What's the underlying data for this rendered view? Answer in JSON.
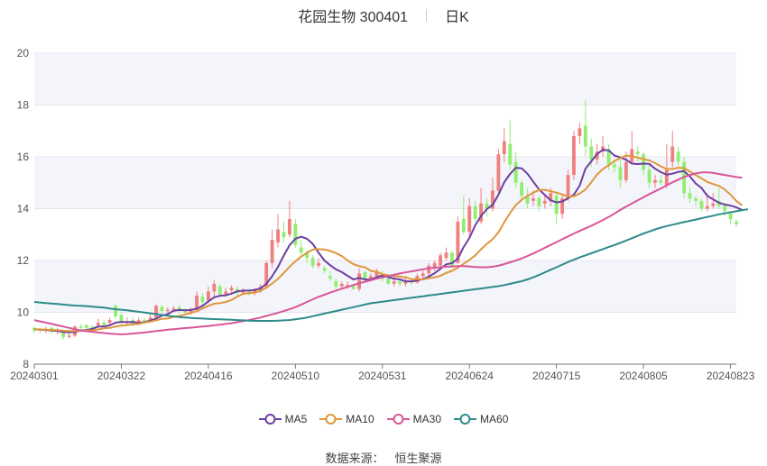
{
  "header": {
    "stock": "花园生物 300401",
    "period": "日K"
  },
  "source": {
    "label": "数据来源：",
    "value": "恒生聚源"
  },
  "colors": {
    "up": "#f08080",
    "down": "#90ee70",
    "MA5": "#6b3fa0",
    "MA10": "#e0963c",
    "MA30": "#d9559a",
    "MA60": "#2e8b8b",
    "band": "#f4f5fa",
    "grid": "#e4e6ee"
  },
  "chart_data": {
    "type": "candlestick",
    "ylim": [
      8,
      20
    ],
    "yticks": [
      "8",
      "10",
      "12",
      "14",
      "16",
      "18",
      "20"
    ],
    "x_ticks": [
      "20240301",
      "20240322",
      "20240416",
      "20240510",
      "20240531",
      "20240624",
      "20240715",
      "20240805",
      "20240823"
    ],
    "x_tick_index": [
      0,
      15,
      30,
      45,
      60,
      75,
      90,
      105,
      120
    ],
    "legend": [
      "MA5",
      "MA10",
      "MA30",
      "MA60"
    ],
    "candles": [
      [
        9.4,
        9.3,
        9.45,
        9.2
      ],
      [
        9.35,
        9.3,
        9.4,
        9.2
      ],
      [
        9.3,
        9.35,
        9.45,
        9.2
      ],
      [
        9.4,
        9.25,
        9.45,
        9.2
      ],
      [
        9.25,
        9.3,
        9.4,
        9.15
      ],
      [
        9.2,
        9.05,
        9.3,
        8.95
      ],
      [
        9.05,
        9.1,
        9.2,
        9.0
      ],
      [
        9.1,
        9.45,
        9.5,
        9.05
      ],
      [
        9.45,
        9.4,
        9.55,
        9.3
      ],
      [
        9.5,
        9.4,
        9.55,
        9.3
      ],
      [
        9.45,
        9.4,
        9.5,
        9.3
      ],
      [
        9.5,
        9.6,
        9.75,
        9.4
      ],
      [
        9.6,
        9.5,
        9.7,
        9.45
      ],
      [
        9.6,
        9.7,
        9.8,
        9.5
      ],
      [
        10.25,
        9.85,
        10.3,
        9.75
      ],
      [
        9.9,
        9.6,
        10.0,
        9.5
      ],
      [
        9.6,
        9.65,
        9.8,
        9.5
      ],
      [
        9.7,
        9.55,
        9.8,
        9.45
      ],
      [
        9.55,
        9.7,
        9.8,
        9.5
      ],
      [
        9.7,
        9.65,
        9.8,
        9.55
      ],
      [
        9.7,
        9.8,
        10.0,
        9.6
      ],
      [
        9.8,
        10.25,
        10.3,
        9.7
      ],
      [
        10.2,
        10.05,
        10.3,
        9.95
      ],
      [
        10.05,
        10.1,
        10.2,
        9.95
      ],
      [
        10.1,
        10.15,
        10.25,
        10.0
      ],
      [
        10.2,
        10.05,
        10.3,
        9.95
      ],
      [
        10.05,
        10.0,
        10.15,
        9.9
      ],
      [
        10.0,
        10.1,
        10.2,
        9.9
      ],
      [
        10.1,
        10.65,
        10.8,
        10.0
      ],
      [
        10.6,
        10.4,
        10.75,
        10.3
      ],
      [
        10.45,
        10.8,
        11.0,
        10.35
      ],
      [
        10.8,
        11.1,
        11.25,
        10.6
      ],
      [
        11.0,
        10.7,
        11.1,
        10.6
      ],
      [
        10.7,
        10.8,
        10.95,
        10.6
      ],
      [
        10.85,
        10.95,
        11.05,
        10.7
      ],
      [
        10.9,
        10.75,
        11.0,
        10.65
      ],
      [
        10.75,
        10.85,
        10.95,
        10.7
      ],
      [
        10.8,
        10.75,
        10.9,
        10.65
      ],
      [
        10.75,
        10.85,
        10.95,
        10.65
      ],
      [
        10.85,
        11.0,
        11.1,
        10.75
      ],
      [
        11.0,
        11.9,
        12.0,
        10.9
      ],
      [
        11.9,
        12.8,
        13.2,
        11.7
      ],
      [
        12.7,
        13.2,
        13.8,
        12.5
      ],
      [
        13.1,
        12.9,
        13.5,
        12.7
      ],
      [
        13.0,
        13.6,
        14.3,
        12.9
      ],
      [
        13.4,
        12.6,
        13.6,
        12.5
      ],
      [
        12.5,
        12.3,
        12.8,
        12.2
      ],
      [
        12.3,
        12.1,
        12.4,
        11.9
      ],
      [
        12.1,
        11.8,
        12.2,
        11.7
      ],
      [
        11.8,
        11.9,
        12.1,
        11.7
      ],
      [
        11.7,
        11.6,
        11.8,
        11.5
      ],
      [
        11.4,
        11.3,
        11.6,
        11.2
      ],
      [
        11.2,
        11.0,
        11.3,
        10.9
      ],
      [
        11.0,
        11.1,
        11.2,
        10.9
      ],
      [
        11.0,
        11.05,
        11.2,
        10.9
      ],
      [
        11.0,
        10.9,
        11.1,
        10.85
      ],
      [
        10.9,
        11.5,
        11.7,
        10.8
      ],
      [
        11.55,
        11.3,
        11.6,
        11.2
      ],
      [
        11.3,
        11.4,
        11.5,
        11.2
      ],
      [
        11.4,
        11.6,
        11.7,
        11.3
      ],
      [
        11.5,
        11.3,
        11.6,
        11.2
      ],
      [
        11.3,
        11.1,
        11.4,
        11.05
      ],
      [
        11.1,
        11.2,
        11.4,
        11.0
      ],
      [
        11.2,
        11.1,
        11.3,
        11.0
      ],
      [
        11.1,
        11.2,
        11.4,
        11.0
      ],
      [
        11.2,
        11.15,
        11.3,
        11.05
      ],
      [
        11.15,
        11.4,
        11.5,
        11.1
      ],
      [
        11.4,
        11.5,
        11.6,
        11.3
      ],
      [
        11.5,
        11.8,
        11.9,
        11.4
      ],
      [
        11.7,
        11.9,
        12.0,
        11.6
      ],
      [
        11.8,
        12.2,
        12.3,
        11.7
      ],
      [
        12.1,
        12.3,
        12.5,
        12.0
      ],
      [
        12.3,
        11.8,
        12.4,
        11.7
      ],
      [
        11.9,
        13.5,
        13.7,
        11.9
      ],
      [
        13.6,
        13.1,
        14.5,
        13.0
      ],
      [
        13.1,
        14.1,
        14.4,
        12.9
      ],
      [
        14.1,
        13.6,
        14.3,
        13.5
      ],
      [
        13.5,
        14.2,
        14.8,
        13.4
      ],
      [
        14.2,
        14.0,
        14.4,
        13.7
      ],
      [
        14.0,
        14.7,
        15.2,
        13.9
      ],
      [
        14.7,
        16.1,
        16.3,
        14.6
      ],
      [
        16.1,
        16.6,
        17.1,
        15.8
      ],
      [
        16.5,
        15.7,
        17.4,
        15.5
      ],
      [
        15.8,
        15.0,
        16.2,
        14.8
      ],
      [
        15.0,
        14.5,
        15.1,
        14.3
      ],
      [
        14.5,
        14.2,
        14.8,
        14.0
      ],
      [
        14.3,
        14.4,
        14.7,
        14.1
      ],
      [
        14.4,
        14.1,
        14.5,
        13.9
      ],
      [
        14.2,
        14.3,
        14.5,
        14.0
      ],
      [
        14.3,
        14.6,
        14.8,
        14.1
      ],
      [
        14.5,
        13.8,
        14.6,
        13.4
      ],
      [
        13.8,
        14.4,
        14.5,
        13.6
      ],
      [
        14.4,
        15.3,
        15.5,
        14.3
      ],
      [
        15.3,
        16.8,
        17.0,
        15.1
      ],
      [
        16.8,
        17.1,
        17.3,
        16.5
      ],
      [
        17.2,
        16.4,
        18.2,
        16.0
      ],
      [
        16.4,
        15.9,
        16.7,
        15.6
      ],
      [
        15.9,
        16.2,
        16.5,
        15.7
      ],
      [
        16.2,
        16.4,
        16.8,
        16.0
      ],
      [
        16.3,
        15.7,
        16.5,
        15.5
      ],
      [
        15.7,
        15.6,
        15.9,
        15.4
      ],
      [
        15.6,
        15.1,
        16.0,
        14.8
      ],
      [
        15.1,
        15.8,
        16.2,
        15.0
      ],
      [
        15.8,
        16.3,
        17.0,
        15.7
      ],
      [
        16.2,
        16.1,
        16.4,
        15.8
      ],
      [
        16.1,
        15.5,
        16.2,
        15.3
      ],
      [
        15.5,
        15.0,
        15.7,
        14.8
      ],
      [
        15.0,
        15.1,
        15.3,
        14.8
      ],
      [
        15.1,
        15.0,
        15.3,
        14.9
      ],
      [
        14.9,
        15.5,
        16.5,
        14.8
      ],
      [
        15.8,
        16.4,
        17.0,
        15.6
      ],
      [
        16.2,
        15.8,
        16.4,
        15.6
      ],
      [
        15.8,
        14.6,
        16.0,
        14.4
      ],
      [
        14.6,
        14.4,
        14.8,
        14.2
      ],
      [
        14.4,
        14.3,
        14.5,
        14.1
      ],
      [
        14.3,
        14.0,
        14.4,
        13.9
      ],
      [
        14.0,
        14.1,
        14.6,
        13.9
      ],
      [
        14.1,
        14.2,
        14.6,
        14.0
      ],
      [
        14.3,
        14.1,
        14.8,
        14.0
      ],
      [
        14.1,
        13.9,
        14.2,
        13.7
      ],
      [
        13.8,
        13.6,
        13.9,
        13.4
      ],
      [
        13.5,
        13.4,
        13.6,
        13.3
      ]
    ],
    "series": [
      {
        "name": "MA5",
        "values": [
          9.35,
          9.33,
          9.32,
          9.3,
          9.28,
          9.24,
          9.23,
          9.24,
          9.3,
          9.32,
          9.36,
          9.45,
          9.45,
          9.5,
          9.6,
          9.63,
          9.62,
          9.63,
          9.59,
          9.62,
          9.68,
          9.76,
          9.87,
          9.93,
          10.06,
          10.09,
          10.08,
          10.09,
          10.14,
          10.25,
          10.42,
          10.58,
          10.64,
          10.66,
          10.72,
          10.81,
          10.84,
          10.84,
          10.86,
          10.93,
          11.1,
          11.39,
          11.75,
          12.19,
          12.59,
          12.84,
          12.92,
          12.84,
          12.64,
          12.3,
          12.0,
          11.82,
          11.66,
          11.55,
          11.41,
          11.27,
          11.33,
          11.27,
          11.26,
          11.36,
          11.43,
          11.36,
          11.3,
          11.27,
          11.2,
          11.19,
          11.23,
          11.28,
          11.38,
          11.51,
          11.68,
          11.85,
          11.9,
          12.07,
          12.52,
          12.87,
          13.36,
          13.72,
          13.98,
          14.15,
          14.54,
          15.02,
          15.34,
          15.58,
          15.56,
          15.35,
          15.04,
          14.74,
          14.53,
          14.32,
          14.24,
          14.28,
          14.4,
          14.54,
          14.89,
          15.54,
          15.83,
          16.11,
          16.27,
          16.25,
          16.05,
          15.98,
          15.89,
          15.74,
          15.72,
          15.74,
          15.73,
          15.54,
          15.41,
          15.31,
          15.35,
          15.42,
          15.45,
          15.24,
          14.97,
          14.8,
          14.49,
          14.36,
          14.23,
          14.16,
          14.12,
          14.05,
          13.95
        ]
      },
      {
        "name": "MA10",
        "values": [
          9.35,
          9.34,
          9.33,
          9.32,
          9.31,
          9.29,
          9.28,
          9.28,
          9.29,
          9.3,
          9.3,
          9.34,
          9.38,
          9.4,
          9.45,
          9.48,
          9.51,
          9.54,
          9.55,
          9.61,
          9.64,
          9.69,
          9.75,
          9.76,
          9.83,
          9.86,
          9.92,
          9.98,
          10.04,
          10.15,
          10.25,
          10.33,
          10.36,
          10.4,
          10.48,
          10.61,
          10.71,
          10.74,
          10.76,
          10.83,
          10.96,
          11.11,
          11.29,
          11.52,
          11.76,
          11.97,
          12.15,
          12.3,
          12.42,
          12.44,
          12.42,
          12.37,
          12.29,
          12.17,
          12.0,
          11.86,
          11.78,
          11.74,
          11.6,
          11.56,
          11.47,
          11.43,
          11.4,
          11.38,
          11.35,
          11.28,
          11.28,
          11.27,
          11.32,
          11.35,
          11.41,
          11.52,
          11.6,
          11.72,
          11.87,
          12.02,
          12.2,
          12.43,
          12.64,
          12.82,
          13.09,
          13.47,
          13.83,
          14.14,
          14.34,
          14.49,
          14.62,
          14.72,
          14.73,
          14.67,
          14.62,
          14.55,
          14.46,
          14.48,
          14.58,
          14.74,
          15.02,
          15.32,
          15.53,
          15.67,
          15.84,
          15.95,
          16.05,
          16.04,
          15.97,
          15.91,
          15.86,
          15.76,
          15.63,
          15.53,
          15.53,
          15.58,
          15.57,
          15.43,
          15.3,
          15.17,
          15.03,
          14.95,
          14.88,
          14.74,
          14.54,
          14.3,
          14.13
        ]
      },
      {
        "name": "MA30",
        "values": [
          9.7,
          9.65,
          9.6,
          9.55,
          9.5,
          9.45,
          9.4,
          9.35,
          9.3,
          9.27,
          9.25,
          9.22,
          9.2,
          9.18,
          9.16,
          9.15,
          9.16,
          9.18,
          9.2,
          9.22,
          9.25,
          9.28,
          9.3,
          9.33,
          9.35,
          9.37,
          9.39,
          9.41,
          9.43,
          9.45,
          9.47,
          9.5,
          9.52,
          9.55,
          9.58,
          9.62,
          9.66,
          9.7,
          9.75,
          9.8,
          9.86,
          9.92,
          9.98,
          10.05,
          10.12,
          10.2,
          10.3,
          10.4,
          10.5,
          10.6,
          10.68,
          10.76,
          10.84,
          10.91,
          10.98,
          11.05,
          11.12,
          11.18,
          11.24,
          11.3,
          11.35,
          11.4,
          11.45,
          11.5,
          11.54,
          11.58,
          11.62,
          11.66,
          11.7,
          11.72,
          11.74,
          11.76,
          11.77,
          11.78,
          11.78,
          11.77,
          11.75,
          11.74,
          11.74,
          11.76,
          11.8,
          11.86,
          11.93,
          12.0,
          12.08,
          12.17,
          12.27,
          12.38,
          12.49,
          12.6,
          12.71,
          12.82,
          12.93,
          13.04,
          13.14,
          13.24,
          13.34,
          13.45,
          13.56,
          13.68,
          13.81,
          13.95,
          14.08,
          14.2,
          14.32,
          14.44,
          14.56,
          14.67,
          14.78,
          14.9,
          15.02,
          15.12,
          15.22,
          15.3,
          15.36,
          15.4,
          15.4,
          15.38,
          15.34,
          15.3,
          15.26,
          15.22,
          15.19
        ]
      },
      {
        "name": "MA60",
        "values": [
          10.4,
          10.38,
          10.36,
          10.34,
          10.32,
          10.3,
          10.28,
          10.26,
          10.25,
          10.24,
          10.22,
          10.2,
          10.18,
          10.15,
          10.12,
          10.1,
          10.08,
          10.05,
          10.02,
          9.99,
          9.96,
          9.93,
          9.9,
          9.87,
          9.84,
          9.82,
          9.8,
          9.78,
          9.77,
          9.76,
          9.75,
          9.74,
          9.73,
          9.72,
          9.71,
          9.7,
          9.69,
          9.68,
          9.67,
          9.67,
          9.67,
          9.67,
          9.68,
          9.69,
          9.7,
          9.73,
          9.76,
          9.8,
          9.85,
          9.9,
          9.95,
          10.0,
          10.05,
          10.1,
          10.15,
          10.2,
          10.25,
          10.3,
          10.35,
          10.38,
          10.41,
          10.44,
          10.47,
          10.5,
          10.53,
          10.56,
          10.59,
          10.62,
          10.65,
          10.68,
          10.71,
          10.74,
          10.77,
          10.8,
          10.83,
          10.86,
          10.89,
          10.92,
          10.95,
          10.98,
          11.01,
          11.05,
          11.1,
          11.15,
          11.2,
          11.27,
          11.35,
          11.44,
          11.54,
          11.64,
          11.74,
          11.84,
          11.94,
          12.03,
          12.12,
          12.2,
          12.28,
          12.36,
          12.44,
          12.52,
          12.6,
          12.68,
          12.77,
          12.86,
          12.95,
          13.04,
          13.12,
          13.2,
          13.27,
          13.33,
          13.38,
          13.43,
          13.48,
          13.53,
          13.58,
          13.63,
          13.68,
          13.73,
          13.78,
          13.82,
          13.86,
          13.9,
          13.94,
          13.98
        ]
      }
    ]
  }
}
